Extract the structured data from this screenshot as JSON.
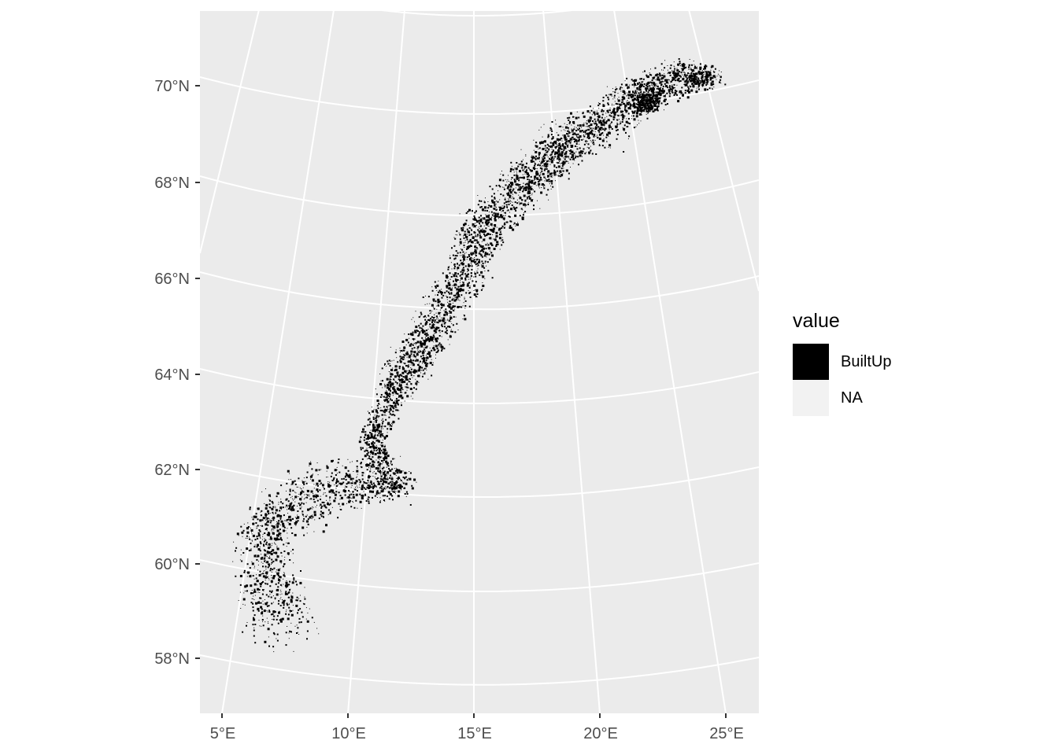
{
  "map": {
    "panel_background": "#ebebeb",
    "grid_color": "#ffffff",
    "builtup_color": "#000000",
    "na_color": "#f2f2f2",
    "lat_labels": [
      "70°N",
      "68°N",
      "66°N",
      "64°N",
      "62°N",
      "60°N",
      "58°N"
    ],
    "lon_labels": [
      "5°E",
      "10°E",
      "15°E",
      "20°E",
      "25°E"
    ]
  },
  "legend": {
    "title": "value",
    "items": [
      {
        "label": "BuiltUp",
        "color": "#000000"
      },
      {
        "label": "NA",
        "color": "#f2f2f2"
      }
    ]
  }
}
